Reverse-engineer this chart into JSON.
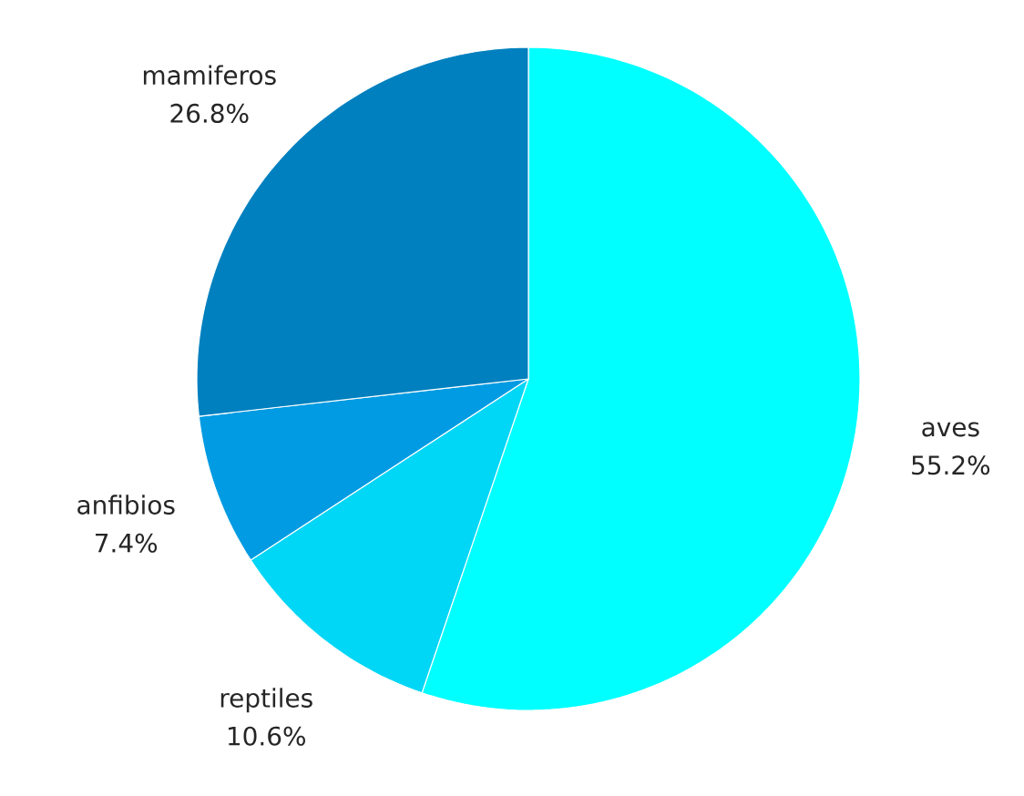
{
  "chart_data": {
    "type": "pie",
    "categories": [
      "aves",
      "reptiles",
      "anfibios",
      "mamiferos"
    ],
    "values": [
      55.2,
      10.6,
      7.4,
      26.8
    ],
    "value_labels": [
      "55.2%",
      "10.6%",
      "7.4%",
      "26.8%"
    ],
    "colors": [
      "#00ffff",
      "#00d6f6",
      "#009be2",
      "#0080bf"
    ]
  }
}
